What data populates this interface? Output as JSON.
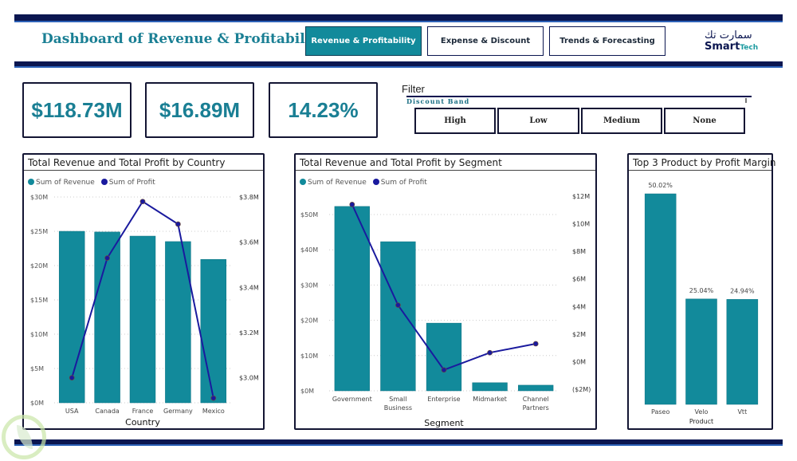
{
  "header": {
    "title": "Dashboard of Revenue & Profitability",
    "nav": [
      {
        "label": "Revenue & Profitability",
        "active": true
      },
      {
        "label": "Expense & Discount",
        "active": false
      },
      {
        "label": "Trends & Forecasting",
        "active": false
      }
    ],
    "logo": {
      "arabic": "سمارت تك",
      "english_main": "Smart",
      "english_sub": "Tech"
    }
  },
  "kpis": [
    {
      "name": "total-revenue",
      "value": "$118.73M"
    },
    {
      "name": "total-profit",
      "value": "$16.89M"
    },
    {
      "name": "profit-margin",
      "value": "14.23%"
    }
  ],
  "filter": {
    "title": "Filter",
    "field": "Discount Band",
    "options": [
      "High",
      "Low",
      "Medium",
      "None"
    ]
  },
  "colors": {
    "revenue": "#128a9b",
    "profit": "#1a1a9e",
    "navy": "#0b1650",
    "accent": "#1a7f94"
  },
  "chart_data": [
    {
      "type": "bar",
      "title": "Total Revenue and Total Profit by Country",
      "xlabel": "Country",
      "ylabel": "",
      "legend": [
        "Sum of Revenue",
        "Sum of Profit"
      ],
      "legend_position": "top-left",
      "categories": [
        "USA",
        "Canada",
        "France",
        "Germany",
        "Mexico"
      ],
      "series": [
        {
          "name": "Sum of Revenue",
          "type": "bar",
          "axis": "left",
          "values": [
            25.0,
            24.9,
            24.3,
            23.5,
            20.9
          ]
        },
        {
          "name": "Sum of Profit",
          "type": "line",
          "axis": "right",
          "values": [
            3.0,
            3.53,
            3.78,
            3.68,
            2.91
          ]
        }
      ],
      "y_left": {
        "ticks": [
          "$0M",
          "$5M",
          "$10M",
          "$15M",
          "$20M",
          "$25M",
          "$30M"
        ],
        "range": [
          0,
          30
        ]
      },
      "y_right": {
        "ticks": [
          "$3.0M",
          "$3.2M",
          "$3.4M",
          "$3.6M",
          "$3.8M"
        ],
        "tick_values": [
          3.0,
          3.2,
          3.4,
          3.6,
          3.8
        ],
        "range": [
          2.9,
          3.8
        ]
      },
      "grid": true
    },
    {
      "type": "bar",
      "title": "Total Revenue and Total Profit by Segment",
      "xlabel": "Segment",
      "ylabel": "",
      "legend": [
        "Sum of Revenue",
        "Sum of Profit"
      ],
      "legend_position": "top-left",
      "categories": [
        "Government",
        "Small Business",
        "Enterprise",
        "Midmarket",
        "Channel Partners"
      ],
      "category_lines": [
        [
          "Government"
        ],
        [
          "Small",
          "Business"
        ],
        [
          "Enterprise"
        ],
        [
          "Midmarket"
        ],
        [
          "Channel",
          "Partners"
        ]
      ],
      "series": [
        {
          "name": "Sum of Revenue",
          "type": "bar",
          "axis": "left",
          "values": [
            52.3,
            42.3,
            19.2,
            2.3,
            1.6
          ]
        },
        {
          "name": "Sum of Profit",
          "type": "line",
          "axis": "right",
          "values": [
            11.4,
            4.1,
            -0.6,
            0.65,
            1.3
          ]
        }
      ],
      "y_left": {
        "ticks": [
          "$0M",
          "$10M",
          "$20M",
          "$30M",
          "$40M",
          "$50M"
        ],
        "range": [
          0,
          50
        ]
      },
      "y_right": {
        "ticks": [
          "($2M)",
          "$0M",
          "$2M",
          "$4M",
          "$6M",
          "$8M",
          "$10M",
          "$12M"
        ],
        "tick_values": [
          -2,
          0,
          2,
          4,
          6,
          8,
          10,
          12
        ],
        "range": [
          -2,
          12
        ]
      },
      "grid": true
    },
    {
      "type": "bar",
      "title": "Top 3 Product by Profit Margin",
      "xlabel": "Product",
      "categories": [
        "Paseo",
        "Velo",
        "Vtt"
      ],
      "values": [
        50.02,
        25.04,
        24.94
      ],
      "data_labels": [
        "50.02%",
        "25.04%",
        "24.94%"
      ],
      "ylim": [
        0,
        50.02
      ],
      "grid": false
    }
  ]
}
